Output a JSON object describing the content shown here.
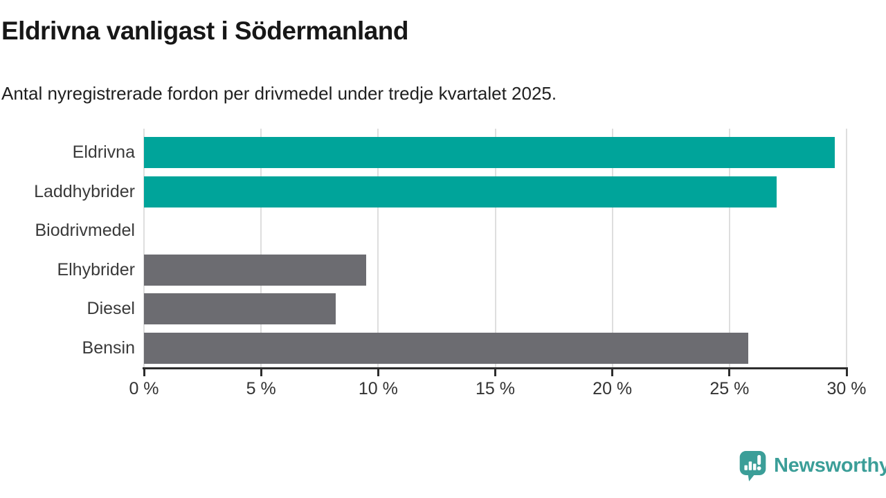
{
  "header": {
    "title": "Eldrivna vanligast i Södermanland",
    "subtitle": "Antal nyregistrerade fordon per drivmedel under tredje kvartalet 2025."
  },
  "chart_data": {
    "type": "bar",
    "orientation": "horizontal",
    "title": "Eldrivna vanligast i Södermanland",
    "subtitle": "Antal nyregistrerade fordon per drivmedel under tredje kvartalet 2025.",
    "categories": [
      "Eldrivna",
      "Laddhybrider",
      "Biodrivmedel",
      "Elhybrider",
      "Diesel",
      "Bensin"
    ],
    "values": [
      29.5,
      27.0,
      0,
      9.5,
      8.2,
      25.8
    ],
    "unit": "%",
    "xlim": [
      0,
      30
    ],
    "x_tick_values": [
      0,
      5,
      10,
      15,
      20,
      25,
      30
    ],
    "x_tick_labels": [
      "0 %",
      "5 %",
      "10 %",
      "15 %",
      "20 %",
      "25 %",
      "30 %"
    ],
    "grid": true,
    "legend": "none",
    "highlight_color": "#00a49a",
    "default_color": "#6c6c71",
    "colors": [
      "#00a49a",
      "#00a49a",
      "#6c6c71",
      "#6c6c71",
      "#6c6c71",
      "#6c6c71"
    ],
    "gridline_color": "#dedede",
    "axis_color": "#2d2d2d"
  },
  "footer": {
    "brand": "Newsworthy",
    "brand_color": "#3b9e98",
    "logo_icon": "chart-speech-bubble-icon"
  }
}
